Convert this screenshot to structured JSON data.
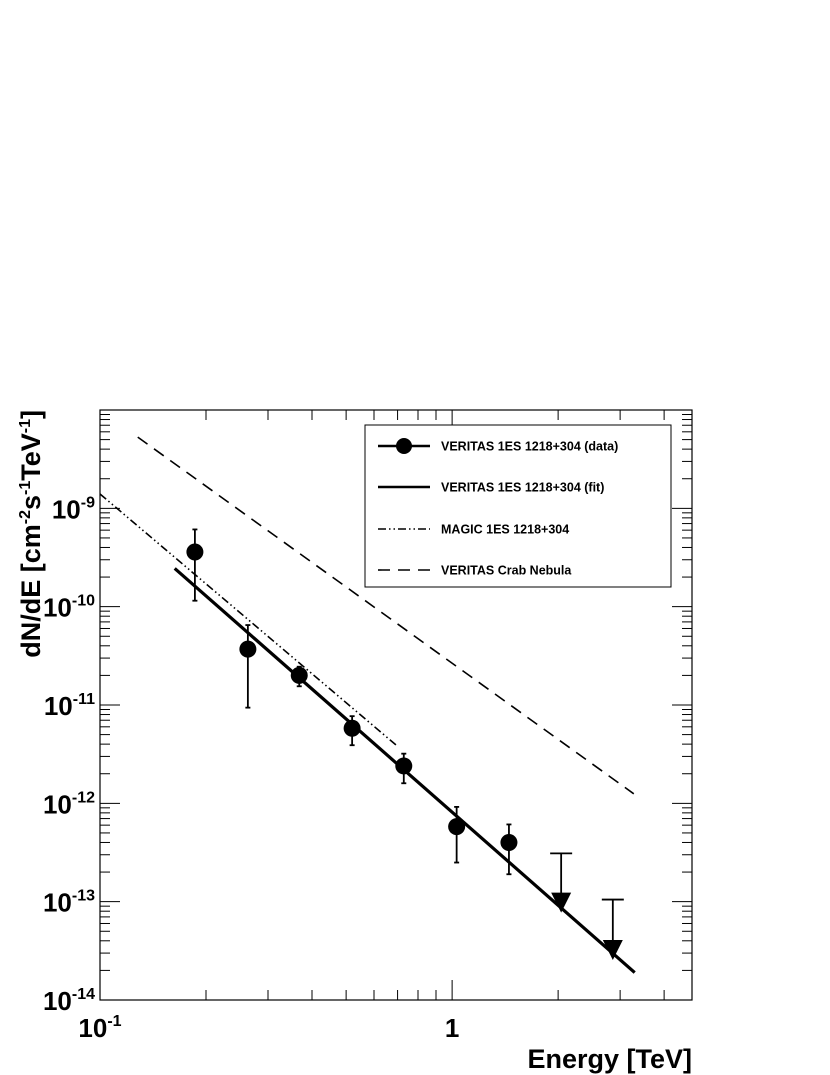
{
  "chart_data": {
    "type": "scatter",
    "xlabel": "Energy [TeV]",
    "ylabel": {
      "parts": [
        {
          "text": "dN/dE [cm",
          "sup": false
        },
        {
          "text": "-2",
          "sup": true
        },
        {
          "text": "s",
          "sup": false
        },
        {
          "text": "-1",
          "sup": true
        },
        {
          "text": "TeV",
          "sup": false
        },
        {
          "text": "-1",
          "sup": true
        },
        {
          "text": "]",
          "sup": false
        }
      ]
    },
    "x_scale": "log",
    "y_scale": "log",
    "xlim": [
      0.1,
      4.8
    ],
    "ylim": [
      1e-14,
      1e-08
    ],
    "x_ticks": [
      {
        "value": 0.1,
        "base": "10",
        "exp": "-1"
      },
      {
        "value": 1,
        "base": "1",
        "exp": ""
      }
    ],
    "y_ticks": [
      {
        "value": 1e-14,
        "base": "10",
        "exp": "-14"
      },
      {
        "value": 1e-13,
        "base": "10",
        "exp": "-13"
      },
      {
        "value": 1e-12,
        "base": "10",
        "exp": "-12"
      },
      {
        "value": 1e-11,
        "base": "10",
        "exp": "-11"
      },
      {
        "value": 1e-10,
        "base": "10",
        "exp": "-10"
      },
      {
        "value": 1e-09,
        "base": "10",
        "exp": "-9"
      }
    ],
    "grid": false,
    "legend_position": "top-right",
    "legend": [
      {
        "label": "VERITAS 1ES 1218+304 (data)",
        "style": "marker-line"
      },
      {
        "label": "VERITAS 1ES 1218+304 (fit)",
        "style": "solid"
      },
      {
        "label": "MAGIC 1ES 1218+304",
        "style": "dash-dot-dot"
      },
      {
        "label": "VERITAS Crab Nebula",
        "style": "dashed"
      }
    ],
    "series": [
      {
        "name": "VERITAS 1ES 1218+304 (data)",
        "kind": "points",
        "points": [
          {
            "x": 0.186,
            "y": 3.6e-10,
            "y_low": 1.15e-10,
            "y_high": 6.1e-10
          },
          {
            "x": 0.263,
            "y": 3.7e-11,
            "y_low": 9.4e-12,
            "y_high": 6.5e-11
          },
          {
            "x": 0.368,
            "y": 2e-11,
            "y_low": 1.55e-11,
            "y_high": 2.45e-11
          },
          {
            "x": 0.52,
            "y": 5.8e-12,
            "y_low": 3.9e-12,
            "y_high": 7.7e-12
          },
          {
            "x": 0.729,
            "y": 2.4e-12,
            "y_low": 1.6e-12,
            "y_high": 3.2e-12
          },
          {
            "x": 1.03,
            "y": 5.8e-13,
            "y_low": 2.5e-13,
            "y_high": 9.2e-13
          },
          {
            "x": 1.45,
            "y": 4e-13,
            "y_low": 1.9e-13,
            "y_high": 6.1e-13
          }
        ]
      },
      {
        "name": "VERITAS 1ES 1218+304 (data) upper limits",
        "kind": "upper-limits",
        "points": [
          {
            "x": 2.04,
            "y": 1e-13,
            "y_high": 3.1e-13
          },
          {
            "x": 2.86,
            "y": 3.3e-14,
            "y_high": 1.05e-13
          }
        ]
      },
      {
        "name": "VERITAS 1ES 1218+304 (fit)",
        "kind": "line",
        "style": "solid",
        "x": [
          0.163,
          3.3
        ],
        "y": [
          2.45e-10,
          1.9e-14
        ]
      },
      {
        "name": "MAGIC 1ES 1218+304",
        "kind": "line",
        "style": "dash-dot-dot",
        "x": [
          0.1,
          0.7
        ],
        "y": [
          1.4e-09,
          3.8e-12
        ]
      },
      {
        "name": "VERITAS Crab Nebula",
        "kind": "line",
        "style": "dashed",
        "x": [
          0.128,
          3.28
        ],
        "y": [
          5.3e-09,
          1.25e-12
        ]
      }
    ]
  }
}
